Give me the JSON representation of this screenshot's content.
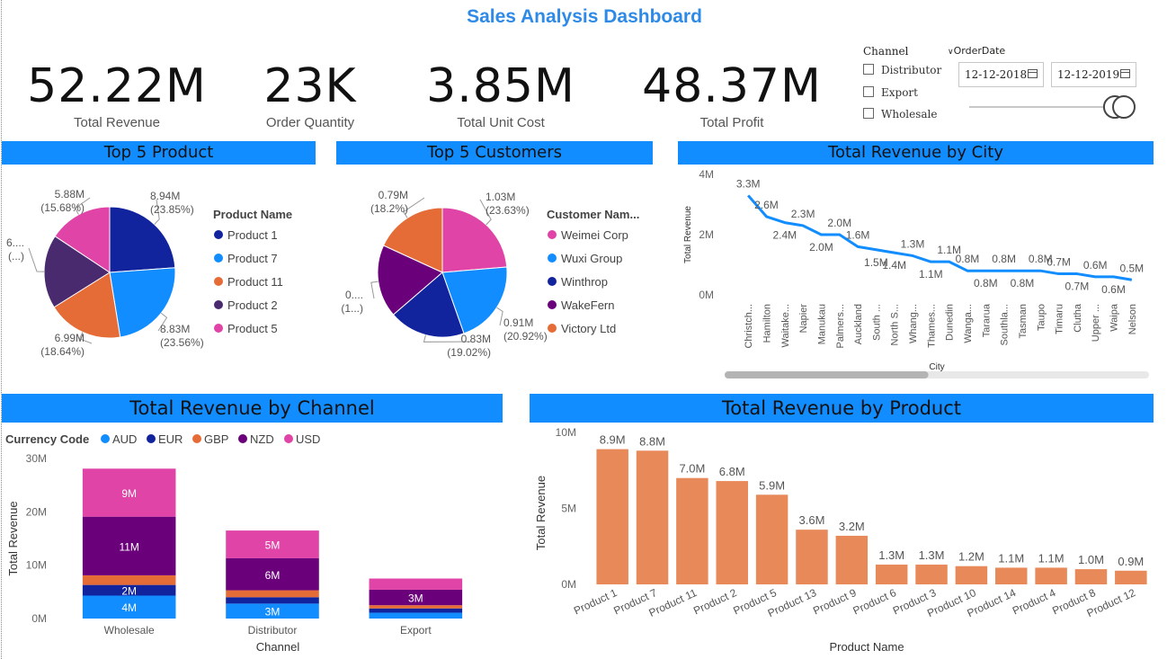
{
  "title": "Sales Analysis Dashboard",
  "kpis": [
    {
      "value": "52.22M",
      "label": "Total Revenue"
    },
    {
      "value": "23K",
      "label": "Order Quantity"
    },
    {
      "value": "3.85M",
      "label": "Total Unit Cost"
    },
    {
      "value": "48.37M",
      "label": "Total Profit"
    }
  ],
  "filters": {
    "channel_title": "Channel",
    "channel_options": [
      "Distributor",
      "Export",
      "Wholesale"
    ],
    "orderdate_title": "OrderDate",
    "start_date": "12-12-2018",
    "end_date": "12-12-2019",
    "range_slider_fraction": [
      0.88,
      1.0
    ]
  },
  "colors": {
    "header_blue": "#118DFF",
    "title_blue": "#2e8ae6",
    "bar_orange": "#E8895A",
    "line_blue": "#118DFF"
  },
  "chart_data": [
    {
      "id": "top5product",
      "type": "pie",
      "title": "Top 5 Product",
      "legend_title": "Product Name",
      "slices": [
        {
          "name": "Product 1",
          "value": 8.94,
          "label": "8.94M",
          "pct": "(23.85%)",
          "color": "#12239E"
        },
        {
          "name": "Product 7",
          "value": 8.83,
          "label": "8.83M",
          "pct": "(23.56%)",
          "color": "#118DFF"
        },
        {
          "name": "Product 11",
          "value": 6.99,
          "label": "6.99M",
          "pct": "(18.64%)",
          "color": "#E66C37"
        },
        {
          "name": "Product 2",
          "value": 6.82,
          "label": "6....",
          "pct": "(...)",
          "color": "#4A2A6E"
        },
        {
          "name": "Product 5",
          "value": 5.88,
          "label": "5.88M",
          "pct": "(15.68%)",
          "color": "#E044A7"
        }
      ]
    },
    {
      "id": "top5customers",
      "type": "pie",
      "title": "Top 5 Customers",
      "legend_title": "Customer Nam...",
      "slices": [
        {
          "name": "Weimei Corp",
          "value": 1.03,
          "label": "1.03M",
          "pct": "(23.63%)",
          "color": "#E044A7"
        },
        {
          "name": "Wuxi Group",
          "value": 0.91,
          "label": "0.91M",
          "pct": "(20.92%)",
          "color": "#118DFF"
        },
        {
          "name": "Winthrop",
          "value": 0.83,
          "label": "0.83M",
          "pct": "(19.02%)",
          "color": "#12239E"
        },
        {
          "name": "WakeFern",
          "value": 0.79,
          "label": "0....",
          "pct": "(1...)",
          "color": "#6B007B"
        },
        {
          "name": "Victory Ltd",
          "value": 0.79,
          "label": "0.79M",
          "pct": "(18.2%)",
          "color": "#E66C37"
        }
      ]
    },
    {
      "id": "revbycity",
      "type": "line",
      "title": "Total Revenue by City",
      "xlabel": "City",
      "ylabel": "Total Revenue",
      "ylim": [
        0,
        4
      ],
      "yticks": [
        "0M",
        "2M",
        "4M"
      ],
      "categories": [
        "Christch...",
        "Hamilton",
        "Waitake...",
        "Napier",
        "Manukau",
        "Palmers...",
        "Auckland",
        "South ...",
        "North S...",
        "Whang...",
        "Thames...",
        "Dunedin",
        "Wanga...",
        "Tararua",
        "Southla...",
        "Tasman",
        "Taupo",
        "Timaru",
        "Clutha",
        "Upper ...",
        "Waipa",
        "Nelson"
      ],
      "values": [
        3.3,
        2.6,
        2.4,
        2.3,
        2.0,
        2.0,
        1.6,
        1.5,
        1.4,
        1.3,
        1.1,
        1.1,
        0.8,
        0.8,
        0.8,
        0.8,
        0.8,
        0.7,
        0.7,
        0.6,
        0.6,
        0.5
      ],
      "data_labels": [
        "3.3M",
        "2.6M",
        "2.4M",
        "2.3M",
        "2.0M",
        "2.0M",
        "1.6M",
        "1.5M",
        "1.4M",
        "1.3M",
        "1.1M",
        "1.1M",
        "0.8M",
        "0.8M",
        "0.8M",
        "0.8M",
        "0.8M",
        "0.7M",
        "0.7M",
        "0.6M",
        "0.6M",
        "0.5M"
      ],
      "label_above": [
        true,
        true,
        false,
        true,
        false,
        true,
        true,
        false,
        false,
        true,
        false,
        true,
        true,
        false,
        true,
        false,
        true,
        true,
        false,
        true,
        false,
        true
      ],
      "scrollbar_fraction": 0.48
    },
    {
      "id": "revbychannel",
      "type": "bar",
      "stacked": true,
      "title": "Total Revenue by Channel",
      "legend_title": "Currency Code",
      "xlabel": "Channel",
      "ylabel": "Total Revenue",
      "ylim": [
        0,
        30
      ],
      "yticks": [
        "0M",
        "10M",
        "20M",
        "30M"
      ],
      "categories": [
        "Wholesale",
        "Distributor",
        "Export"
      ],
      "series": [
        {
          "name": "AUD",
          "color": "#118DFF",
          "values": [
            4.3,
            2.8,
            1.1
          ],
          "labels": [
            "4M",
            "3M",
            ""
          ]
        },
        {
          "name": "EUR",
          "color": "#12239E",
          "values": [
            2.0,
            1.2,
            0.8
          ],
          "labels": [
            "2M",
            "",
            ""
          ]
        },
        {
          "name": "GBP",
          "color": "#E66C37",
          "values": [
            1.8,
            1.3,
            0.6
          ],
          "labels": [
            "",
            "",
            ""
          ]
        },
        {
          "name": "NZD",
          "color": "#6B007B",
          "values": [
            11.0,
            6.0,
            2.9
          ],
          "labels": [
            "11M",
            "6M",
            "3M"
          ]
        },
        {
          "name": "USD",
          "color": "#E044A7",
          "values": [
            9.0,
            5.2,
            2.1
          ],
          "labels": [
            "9M",
            "5M",
            ""
          ]
        }
      ]
    },
    {
      "id": "revbyproduct",
      "type": "bar",
      "title": "Total Revenue by Product",
      "xlabel": "Product Name",
      "ylabel": "Total Revenue",
      "ylim": [
        0,
        10
      ],
      "yticks": [
        "0M",
        "5M",
        "10M"
      ],
      "categories": [
        "Product 1",
        "Product 7",
        "Product 11",
        "Product 2",
        "Product 5",
        "Product 13",
        "Product 9",
        "Product 6",
        "Product 3",
        "Product 10",
        "Product 14",
        "Product 4",
        "Product 8",
        "Product 12"
      ],
      "values": [
        8.9,
        8.8,
        7.0,
        6.8,
        5.9,
        3.6,
        3.2,
        1.3,
        1.3,
        1.2,
        1.1,
        1.1,
        1.0,
        0.9
      ],
      "data_labels": [
        "8.9M",
        "8.8M",
        "7.0M",
        "6.8M",
        "5.9M",
        "3.6M",
        "3.2M",
        "1.3M",
        "1.3M",
        "1.2M",
        "1.1M",
        "1.1M",
        "1.0M",
        "0.9M"
      ]
    }
  ]
}
